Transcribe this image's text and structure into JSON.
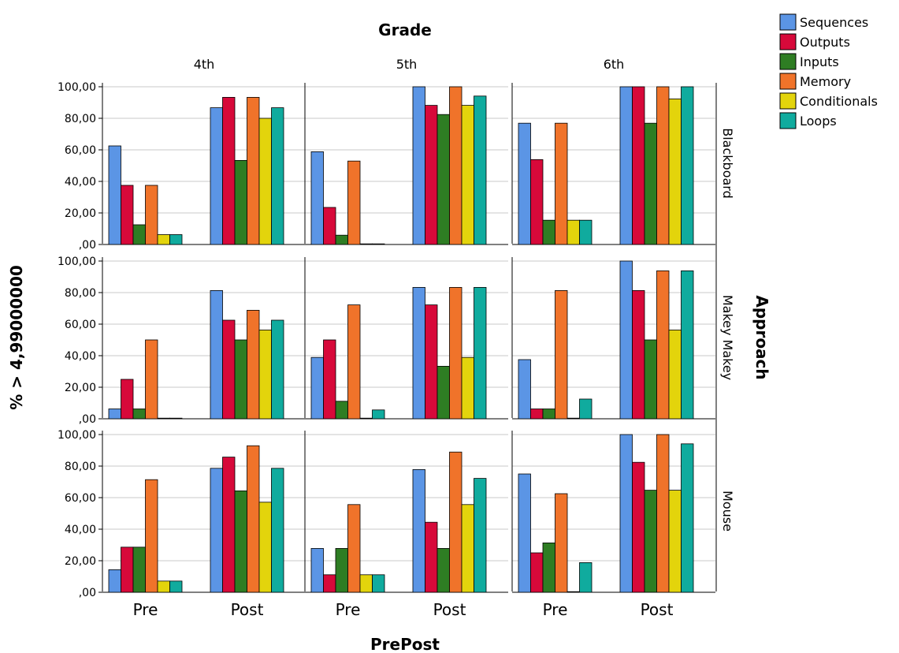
{
  "chart_data": {
    "type": "bar",
    "title": "",
    "column_panel_title": "Grade",
    "row_panel_title": "Approach",
    "xlabel": "PrePost",
    "ylabel": "% > 4,99000000",
    "ylim": [
      0,
      100
    ],
    "yticks": [
      ",00",
      "20,00",
      "40,00",
      "60,00",
      "80,00",
      "100,00"
    ],
    "grid": true,
    "legend": "top-right",
    "columns": [
      "4th",
      "5th",
      "6th"
    ],
    "rows": [
      "Blackboard",
      "Makey Makey",
      "Mouse"
    ],
    "categories": [
      "Pre",
      "Post"
    ],
    "series_names": [
      "Sequences",
      "Outputs",
      "Inputs",
      "Memory",
      "Conditionals",
      "Loops"
    ],
    "colors": [
      "#5b95e5",
      "#d7093a",
      "#2e7d23",
      "#f0732a",
      "#e3d40c",
      "#10ab9e"
    ],
    "panels": [
      {
        "row": "Blackboard",
        "column": "4th",
        "values": {
          "Pre": [
            62.5,
            37.5,
            12.5,
            37.5,
            6.25,
            6.25
          ],
          "Post": [
            86.7,
            93.3,
            53.3,
            93.3,
            80.0,
            86.7
          ]
        }
      },
      {
        "row": "Blackboard",
        "column": "5th",
        "values": {
          "Pre": [
            58.8,
            23.5,
            5.9,
            52.9,
            0,
            0
          ],
          "Post": [
            100,
            88.2,
            82.4,
            100,
            88.2,
            94.1
          ]
        }
      },
      {
        "row": "Blackboard",
        "column": "6th",
        "values": {
          "Pre": [
            76.9,
            53.8,
            15.4,
            76.9,
            15.4,
            15.4
          ],
          "Post": [
            100,
            100,
            76.9,
            100,
            92.3,
            100
          ]
        }
      },
      {
        "row": "Makey Makey",
        "column": "4th",
        "values": {
          "Pre": [
            6.25,
            25.0,
            6.25,
            50.0,
            0,
            0
          ],
          "Post": [
            81.3,
            62.5,
            50.0,
            68.8,
            56.3,
            62.5
          ]
        }
      },
      {
        "row": "Makey Makey",
        "column": "5th",
        "values": {
          "Pre": [
            38.9,
            50.0,
            11.1,
            72.2,
            0,
            5.6
          ],
          "Post": [
            83.3,
            72.2,
            33.3,
            83.3,
            38.9,
            83.3
          ]
        }
      },
      {
        "row": "Makey Makey",
        "column": "6th",
        "values": {
          "Pre": [
            37.5,
            6.25,
            6.25,
            81.3,
            0,
            12.5
          ],
          "Post": [
            100,
            81.3,
            50.0,
            93.8,
            56.3,
            93.8
          ]
        }
      },
      {
        "row": "Mouse",
        "column": "4th",
        "values": {
          "Pre": [
            14.3,
            28.6,
            28.6,
            71.4,
            7.1,
            7.1
          ],
          "Post": [
            78.6,
            85.7,
            64.3,
            92.9,
            57.1,
            78.6
          ]
        }
      },
      {
        "row": "Mouse",
        "column": "5th",
        "values": {
          "Pre": [
            27.8,
            11.1,
            27.8,
            55.6,
            11.1,
            11.1
          ],
          "Post": [
            77.8,
            44.4,
            27.8,
            88.9,
            55.6,
            72.2
          ]
        }
      },
      {
        "row": "Mouse",
        "column": "6th",
        "values": {
          "Pre": [
            75.0,
            25.0,
            31.3,
            62.5,
            0,
            18.8
          ],
          "Post": [
            100,
            82.4,
            64.7,
            100,
            64.7,
            94.1
          ]
        }
      }
    ]
  }
}
